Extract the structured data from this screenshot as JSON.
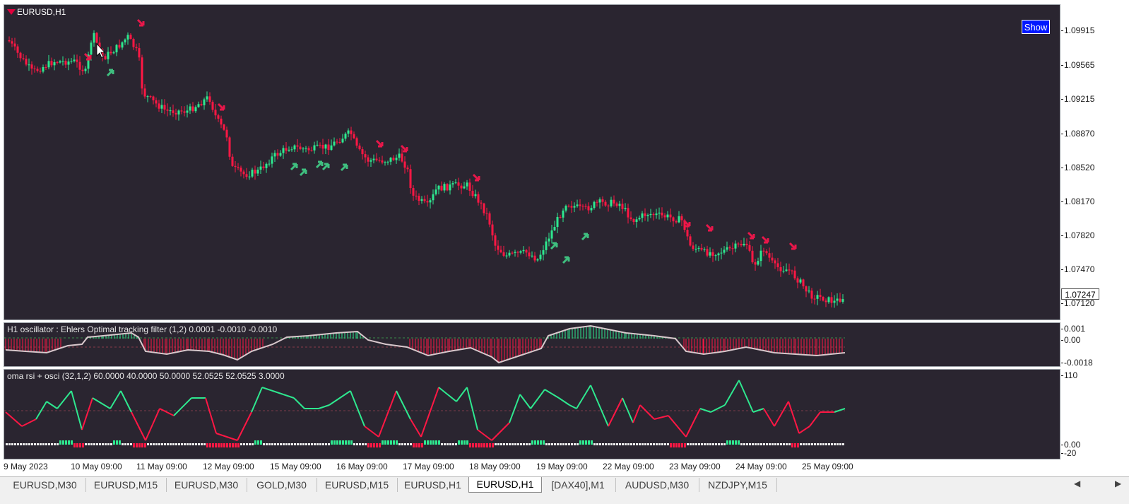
{
  "main_chart": {
    "symbol_label": "EURUSD,H1",
    "show_button": "Show",
    "current_price": "1.07247",
    "price_ticks": [
      "1.09915",
      "1.09565",
      "1.09215",
      "1.08870",
      "1.08520",
      "1.08170",
      "1.07820",
      "1.07470",
      "1.07120"
    ],
    "colors": {
      "bull": "#2ee88f",
      "bear": "#ff1744",
      "arrow_up": "#3fbf7f",
      "arrow_down": "#e8174a",
      "background": "#2a2530"
    }
  },
  "oscillator_1": {
    "label": "H1  oscillator : Ehlers Optimal tracking filter (1,2)  0.0001 -0.0010 -0.0010",
    "ticks": [
      "0.001",
      "0.00",
      "-0.0018"
    ]
  },
  "oscillator_2": {
    "label": "oma rsi + osci (32,1,2) 60.0000 40.0000 50.0000 52.0525 52.0525 3.0000",
    "ticks": [
      "110",
      "0.00",
      "-20"
    ]
  },
  "time_axis": [
    "9 May 2023",
    "10 May 09:00",
    "11 May 09:00",
    "12 May 09:00",
    "15 May 09:00",
    "16 May 09:00",
    "17 May 09:00",
    "18 May 09:00",
    "19 May 09:00",
    "22 May 09:00",
    "23 May 09:00",
    "24 May 09:00",
    "25 May 09:00"
  ],
  "tabs": [
    "EURUSD,M30",
    "EURUSD,M15",
    "EURUSD,M30",
    "GOLD,M30",
    "EURUSD,M15",
    "EURUSD,H1",
    "EURUSD,H1",
    "[DAX40],M1",
    "AUDUSD,M30",
    "NZDJPY,M15"
  ],
  "active_tab_index": 6
}
